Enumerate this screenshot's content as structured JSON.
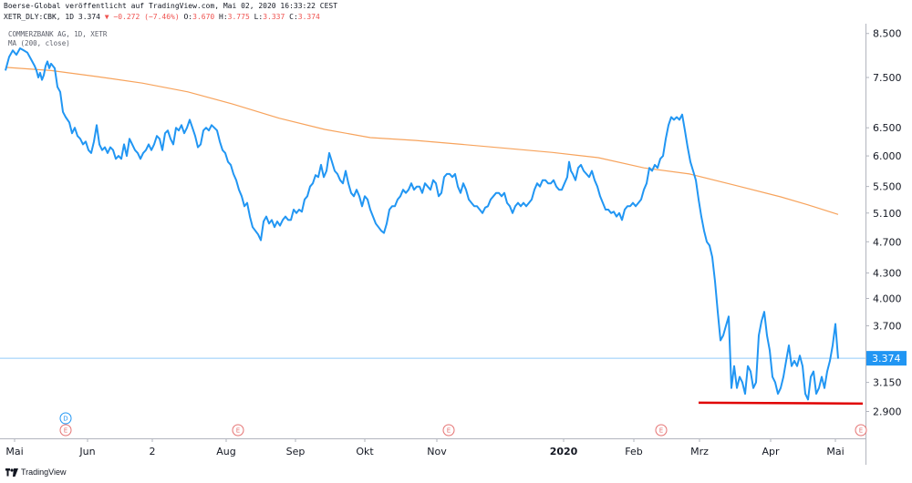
{
  "header": {
    "line1": "Boerse-Global veröffentlicht auf TradingView.com, Mai 02, 2020 16:33:22 CEST",
    "line2_prefix": "XETR_DLY:CBK, 1D 3.374 ",
    "change": "▼ −0.272 (−7.46%)",
    "o_label": " O:",
    "o_value": "3.670",
    "h_label": " H:",
    "h_value": "3.775",
    "l_label": " L:",
    "l_value": "3.337",
    "c_label": " C:",
    "c_value": "3.374"
  },
  "legend": {
    "symbol": "COMMERZBANK AG, 1D, XETR",
    "ma": "MA (200, close)"
  },
  "branding": {
    "text": "TradingView"
  },
  "colors": {
    "price_line": "#2196f3",
    "ma_line": "#f7a35c",
    "support_line": "#e00000",
    "last_price_bg": "#2196f3",
    "event_red": "#e57373",
    "event_blue": "#2196f3"
  },
  "chart_data": {
    "type": "line",
    "y_scale": "log",
    "ylim": [
      2.75,
      8.65
    ],
    "yticks": [
      "8.500",
      "7.500",
      "6.500",
      "6.000",
      "5.500",
      "5.100",
      "4.700",
      "4.300",
      "4.000",
      "3.700",
      "3.150",
      "2.900"
    ],
    "last_price_label": "3.374",
    "x_labels": [
      "Mai",
      "Jun",
      "2",
      "Aug",
      "Sep",
      "Okt",
      "Nov",
      "2020",
      "Feb",
      "Mrz",
      "Apr",
      "Mai"
    ],
    "x_label_bold": "2020",
    "events": [
      {
        "label": "D",
        "kind": "dividend"
      },
      {
        "label": "E",
        "kind": "earnings"
      },
      {
        "label": "E",
        "kind": "earnings"
      },
      {
        "label": "E",
        "kind": "earnings"
      },
      {
        "label": "E",
        "kind": "earnings"
      },
      {
        "label": "E",
        "kind": "earnings"
      }
    ],
    "price": [
      [
        0,
        7.65
      ],
      [
        4,
        7.95
      ],
      [
        8,
        8.1
      ],
      [
        12,
        8.0
      ],
      [
        16,
        8.15
      ],
      [
        20,
        8.1
      ],
      [
        24,
        8.05
      ],
      [
        28,
        7.9
      ],
      [
        32,
        7.75
      ],
      [
        34,
        7.65
      ],
      [
        36,
        7.5
      ],
      [
        38,
        7.6
      ],
      [
        40,
        7.45
      ],
      [
        42,
        7.55
      ],
      [
        44,
        7.75
      ],
      [
        46,
        7.85
      ],
      [
        48,
        7.7
      ],
      [
        50,
        7.8
      ],
      [
        54,
        7.7
      ],
      [
        57,
        7.3
      ],
      [
        60,
        7.2
      ],
      [
        63,
        6.8
      ],
      [
        66,
        6.7
      ],
      [
        70,
        6.6
      ],
      [
        73,
        6.4
      ],
      [
        76,
        6.5
      ],
      [
        79,
        6.35
      ],
      [
        82,
        6.3
      ],
      [
        85,
        6.2
      ],
      [
        88,
        6.25
      ],
      [
        91,
        6.1
      ],
      [
        94,
        6.05
      ],
      [
        97,
        6.25
      ],
      [
        100,
        6.55
      ],
      [
        103,
        6.2
      ],
      [
        106,
        6.1
      ],
      [
        109,
        6.15
      ],
      [
        112,
        6.05
      ],
      [
        115,
        6.15
      ],
      [
        118,
        6.1
      ],
      [
        121,
        5.95
      ],
      [
        124,
        6.0
      ],
      [
        127,
        5.95
      ],
      [
        130,
        6.2
      ],
      [
        133,
        6.0
      ],
      [
        136,
        6.3
      ],
      [
        139,
        6.2
      ],
      [
        142,
        6.1
      ],
      [
        145,
        6.05
      ],
      [
        148,
        5.95
      ],
      [
        151,
        6.05
      ],
      [
        154,
        6.1
      ],
      [
        157,
        6.2
      ],
      [
        160,
        6.1
      ],
      [
        163,
        6.2
      ],
      [
        166,
        6.35
      ],
      [
        169,
        6.3
      ],
      [
        172,
        6.1
      ],
      [
        175,
        6.4
      ],
      [
        178,
        6.45
      ],
      [
        181,
        6.3
      ],
      [
        184,
        6.2
      ],
      [
        187,
        6.5
      ],
      [
        190,
        6.45
      ],
      [
        193,
        6.55
      ],
      [
        196,
        6.4
      ],
      [
        199,
        6.5
      ],
      [
        202,
        6.65
      ],
      [
        205,
        6.5
      ],
      [
        208,
        6.35
      ],
      [
        211,
        6.15
      ],
      [
        214,
        6.2
      ],
      [
        217,
        6.45
      ],
      [
        220,
        6.5
      ],
      [
        223,
        6.45
      ],
      [
        226,
        6.55
      ],
      [
        229,
        6.5
      ],
      [
        232,
        6.45
      ],
      [
        235,
        6.25
      ],
      [
        238,
        6.1
      ],
      [
        241,
        6.05
      ],
      [
        244,
        5.9
      ],
      [
        247,
        5.85
      ],
      [
        250,
        5.7
      ],
      [
        253,
        5.6
      ],
      [
        256,
        5.45
      ],
      [
        259,
        5.35
      ],
      [
        262,
        5.2
      ],
      [
        265,
        5.25
      ],
      [
        268,
        5.05
      ],
      [
        271,
        4.9
      ],
      [
        274,
        4.85
      ],
      [
        277,
        4.8
      ],
      [
        280,
        4.72
      ],
      [
        283,
        4.98
      ],
      [
        286,
        5.05
      ],
      [
        289,
        4.95
      ],
      [
        292,
        5.0
      ],
      [
        295,
        4.9
      ],
      [
        298,
        4.98
      ],
      [
        301,
        4.92
      ],
      [
        304,
        5.0
      ],
      [
        307,
        5.05
      ],
      [
        310,
        5.0
      ],
      [
        313,
        5.0
      ],
      [
        316,
        5.15
      ],
      [
        319,
        5.1
      ],
      [
        322,
        5.15
      ],
      [
        325,
        5.12
      ],
      [
        328,
        5.3
      ],
      [
        331,
        5.35
      ],
      [
        334,
        5.5
      ],
      [
        337,
        5.55
      ],
      [
        340,
        5.68
      ],
      [
        343,
        5.65
      ],
      [
        346,
        5.85
      ],
      [
        349,
        5.65
      ],
      [
        352,
        5.75
      ],
      [
        355,
        6.05
      ],
      [
        358,
        5.9
      ],
      [
        361,
        5.75
      ],
      [
        364,
        5.7
      ],
      [
        367,
        5.6
      ],
      [
        370,
        5.55
      ],
      [
        373,
        5.75
      ],
      [
        376,
        5.55
      ],
      [
        379,
        5.4
      ],
      [
        382,
        5.35
      ],
      [
        385,
        5.45
      ],
      [
        388,
        5.35
      ],
      [
        391,
        5.2
      ],
      [
        394,
        5.35
      ],
      [
        397,
        5.3
      ],
      [
        400,
        5.15
      ],
      [
        403,
        5.05
      ],
      [
        406,
        4.95
      ],
      [
        409,
        4.9
      ],
      [
        412,
        4.85
      ],
      [
        415,
        4.82
      ],
      [
        418,
        4.95
      ],
      [
        421,
        5.15
      ],
      [
        424,
        5.2
      ],
      [
        427,
        5.2
      ],
      [
        430,
        5.3
      ],
      [
        433,
        5.35
      ],
      [
        436,
        5.45
      ],
      [
        439,
        5.4
      ],
      [
        442,
        5.45
      ],
      [
        445,
        5.55
      ],
      [
        448,
        5.45
      ],
      [
        451,
        5.5
      ],
      [
        454,
        5.5
      ],
      [
        457,
        5.4
      ],
      [
        460,
        5.55
      ],
      [
        463,
        5.5
      ],
      [
        466,
        5.45
      ],
      [
        469,
        5.6
      ],
      [
        472,
        5.55
      ],
      [
        475,
        5.35
      ],
      [
        478,
        5.4
      ],
      [
        481,
        5.65
      ],
      [
        484,
        5.7
      ],
      [
        487,
        5.7
      ],
      [
        490,
        5.65
      ],
      [
        493,
        5.7
      ],
      [
        496,
        5.5
      ],
      [
        499,
        5.4
      ],
      [
        502,
        5.55
      ],
      [
        505,
        5.45
      ],
      [
        508,
        5.3
      ],
      [
        511,
        5.25
      ],
      [
        514,
        5.2
      ],
      [
        517,
        5.2
      ],
      [
        520,
        5.15
      ],
      [
        523,
        5.1
      ],
      [
        526,
        5.18
      ],
      [
        529,
        5.2
      ],
      [
        532,
        5.3
      ],
      [
        535,
        5.35
      ],
      [
        538,
        5.4
      ],
      [
        541,
        5.4
      ],
      [
        544,
        5.35
      ],
      [
        547,
        5.4
      ],
      [
        550,
        5.25
      ],
      [
        553,
        5.2
      ],
      [
        556,
        5.1
      ],
      [
        559,
        5.2
      ],
      [
        562,
        5.25
      ],
      [
        565,
        5.2
      ],
      [
        568,
        5.25
      ],
      [
        571,
        5.2
      ],
      [
        574,
        5.25
      ],
      [
        577,
        5.3
      ],
      [
        580,
        5.45
      ],
      [
        583,
        5.55
      ],
      [
        586,
        5.5
      ],
      [
        589,
        5.6
      ],
      [
        592,
        5.6
      ],
      [
        595,
        5.55
      ],
      [
        598,
        5.55
      ],
      [
        601,
        5.6
      ],
      [
        604,
        5.5
      ],
      [
        607,
        5.45
      ],
      [
        610,
        5.45
      ],
      [
        613,
        5.55
      ],
      [
        616,
        5.65
      ],
      [
        618,
        5.9
      ],
      [
        620,
        5.75
      ],
      [
        622,
        5.7
      ],
      [
        625,
        5.6
      ],
      [
        628,
        5.8
      ],
      [
        631,
        5.85
      ],
      [
        634,
        5.75
      ],
      [
        637,
        5.7
      ],
      [
        640,
        5.65
      ],
      [
        643,
        5.75
      ],
      [
        646,
        5.6
      ],
      [
        649,
        5.5
      ],
      [
        652,
        5.35
      ],
      [
        655,
        5.25
      ],
      [
        658,
        5.15
      ],
      [
        661,
        5.15
      ],
      [
        664,
        5.1
      ],
      [
        667,
        5.12
      ],
      [
        670,
        5.05
      ],
      [
        673,
        5.1
      ],
      [
        676,
        5.0
      ],
      [
        679,
        5.15
      ],
      [
        682,
        5.2
      ],
      [
        685,
        5.2
      ],
      [
        688,
        5.25
      ],
      [
        691,
        5.2
      ],
      [
        694,
        5.25
      ],
      [
        697,
        5.3
      ],
      [
        700,
        5.45
      ],
      [
        703,
        5.55
      ],
      [
        706,
        5.8
      ],
      [
        709,
        5.75
      ],
      [
        712,
        5.85
      ],
      [
        715,
        5.8
      ],
      [
        718,
        5.95
      ],
      [
        721,
        6.0
      ],
      [
        724,
        6.3
      ],
      [
        727,
        6.55
      ],
      [
        730,
        6.7
      ],
      [
        733,
        6.65
      ],
      [
        736,
        6.7
      ],
      [
        739,
        6.65
      ],
      [
        742,
        6.75
      ],
      [
        745,
        6.45
      ],
      [
        748,
        6.15
      ],
      [
        751,
        5.9
      ],
      [
        754,
        5.75
      ],
      [
        757,
        5.6
      ],
      [
        760,
        5.3
      ],
      [
        763,
        5.05
      ],
      [
        766,
        4.85
      ],
      [
        769,
        4.7
      ],
      [
        772,
        4.65
      ],
      [
        775,
        4.5
      ],
      [
        778,
        4.2
      ],
      [
        781,
        3.85
      ],
      [
        784,
        3.55
      ],
      [
        787,
        3.6
      ],
      [
        790,
        3.7
      ],
      [
        793,
        3.8
      ],
      [
        796,
        3.1
      ],
      [
        799,
        3.3
      ],
      [
        802,
        3.1
      ],
      [
        805,
        3.2
      ],
      [
        808,
        3.15
      ],
      [
        811,
        3.05
      ],
      [
        814,
        3.3
      ],
      [
        817,
        3.25
      ],
      [
        820,
        3.1
      ],
      [
        823,
        3.15
      ],
      [
        826,
        3.6
      ],
      [
        829,
        3.75
      ],
      [
        832,
        3.85
      ],
      [
        835,
        3.6
      ],
      [
        838,
        3.45
      ],
      [
        841,
        3.2
      ],
      [
        844,
        3.15
      ],
      [
        847,
        3.05
      ],
      [
        850,
        3.1
      ],
      [
        853,
        3.2
      ],
      [
        856,
        3.35
      ],
      [
        859,
        3.5
      ],
      [
        862,
        3.3
      ],
      [
        865,
        3.35
      ],
      [
        868,
        3.3
      ],
      [
        871,
        3.4
      ],
      [
        874,
        3.3
      ],
      [
        877,
        3.05
      ],
      [
        880,
        3.0
      ],
      [
        883,
        3.2
      ],
      [
        886,
        3.25
      ],
      [
        889,
        3.05
      ],
      [
        892,
        3.1
      ],
      [
        895,
        3.2
      ],
      [
        898,
        3.1
      ],
      [
        901,
        3.25
      ],
      [
        904,
        3.35
      ],
      [
        907,
        3.5
      ],
      [
        910,
        3.72
      ],
      [
        913,
        3.37
      ]
    ],
    "ma200": [
      [
        0,
        7.72
      ],
      [
        50,
        7.65
      ],
      [
        100,
        7.52
      ],
      [
        150,
        7.38
      ],
      [
        200,
        7.2
      ],
      [
        250,
        6.95
      ],
      [
        300,
        6.68
      ],
      [
        350,
        6.47
      ],
      [
        400,
        6.32
      ],
      [
        450,
        6.27
      ],
      [
        500,
        6.2
      ],
      [
        550,
        6.13
      ],
      [
        600,
        6.06
      ],
      [
        650,
        5.97
      ],
      [
        700,
        5.8
      ],
      [
        750,
        5.7
      ],
      [
        800,
        5.52
      ],
      [
        850,
        5.34
      ],
      [
        880,
        5.22
      ],
      [
        913,
        5.08
      ]
    ],
    "support_level": 2.97
  }
}
